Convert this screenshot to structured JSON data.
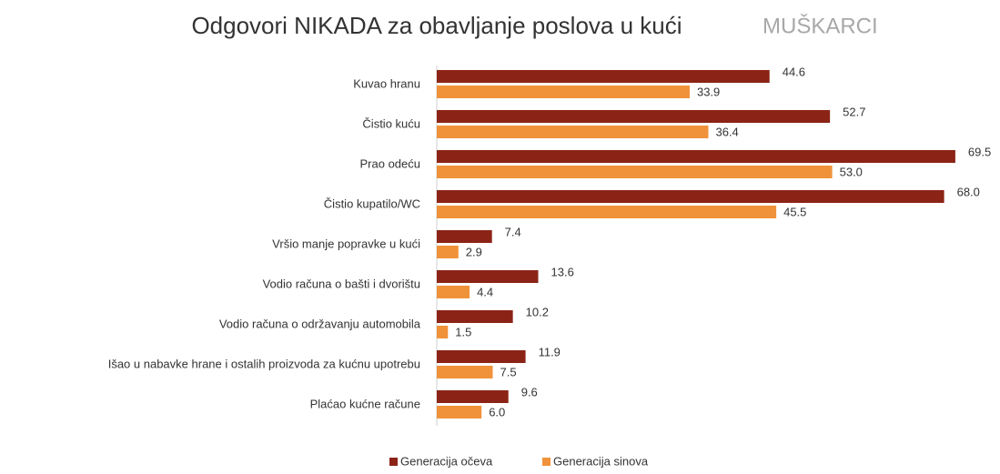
{
  "chart_data": {
    "type": "bar",
    "orientation": "horizontal",
    "title": "Odgovori NIKADA za obavljanje poslova u kući",
    "subtitle": "MUŠKARCI",
    "categories": [
      "Kuvao hranu",
      "Čistio kuću",
      "Prao odeću",
      "Čistio kupatilo/WC",
      "Vršio manje popravke u kući",
      "Vodio računa o bašti i dvorištu",
      "Vodio računa o održavanju automobila",
      "Išao u nabavke hrane i ostalih proizvoda za kućnu upotrebu",
      "Plaćao kućne račune"
    ],
    "series": [
      {
        "name": "Generacija očeva",
        "color": "#8b2416",
        "values": [
          44.6,
          52.7,
          69.5,
          68.0,
          7.4,
          13.6,
          10.2,
          11.9,
          9.6
        ],
        "value_labels": [
          "44.6",
          "52.7",
          "69.5",
          "68.0",
          "7.4",
          "13.6",
          "10.2",
          "11.9",
          "9.6"
        ]
      },
      {
        "name": "Generacija sinova",
        "color": "#f0923a",
        "values": [
          33.9,
          36.4,
          53.0,
          45.5,
          2.9,
          4.4,
          1.5,
          7.5,
          6.0
        ],
        "value_labels": [
          "33.9",
          "36.4",
          "53.0",
          "45.5",
          "2.9",
          "4.4",
          "1.5",
          "7.5",
          "6.0"
        ]
      }
    ],
    "xlim": [
      0,
      70
    ],
    "legend": "bottom"
  }
}
